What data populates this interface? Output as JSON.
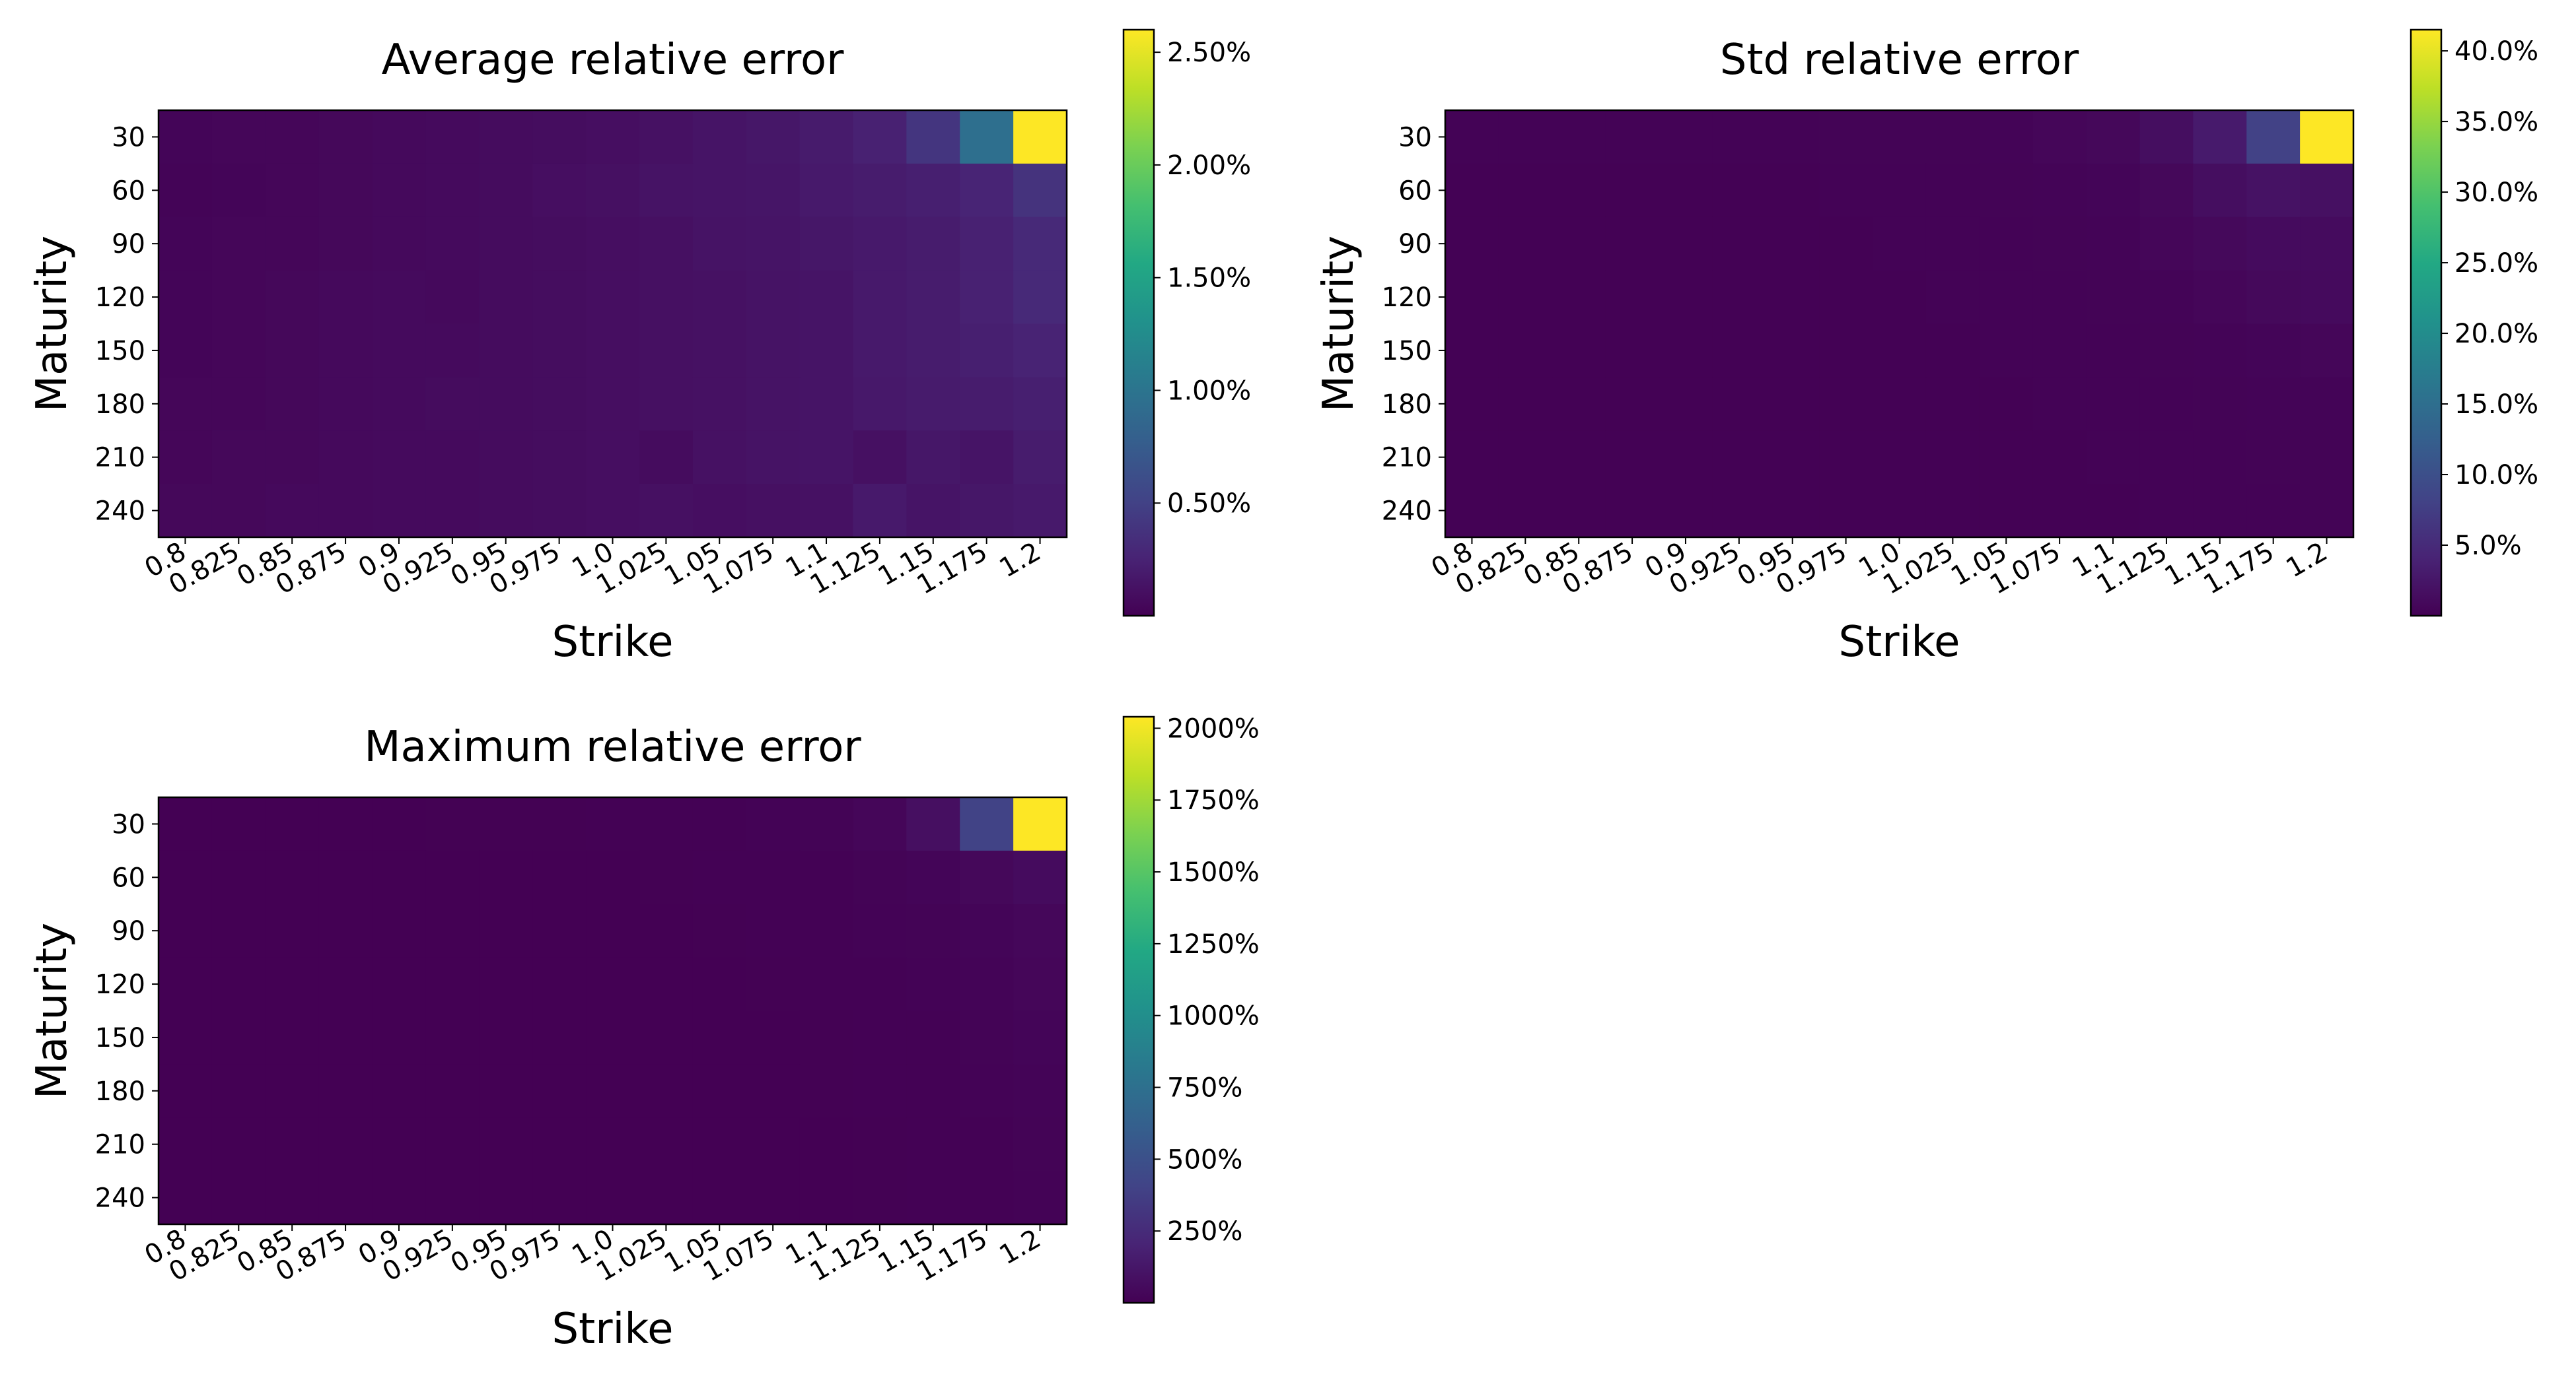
{
  "chart_data": [
    {
      "type": "heatmap",
      "title": "Average relative error",
      "xlabel": "Strike",
      "ylabel": "Maturity",
      "x": [
        "0.8",
        "0.825",
        "0.85",
        "0.875",
        "0.9",
        "0.925",
        "0.95",
        "0.975",
        "1.0",
        "1.025",
        "1.05",
        "1.075",
        "1.1",
        "1.125",
        "1.15",
        "1.175",
        "1.2"
      ],
      "y": [
        "30",
        "60",
        "90",
        "120",
        "150",
        "180",
        "210",
        "240"
      ],
      "colorbar": {
        "min": 0.0,
        "max": 2.6,
        "ticks": [
          "0.50%",
          "1.00%",
          "1.50%",
          "2.00%",
          "2.50%"
        ],
        "tick_values": [
          0.5,
          1.0,
          1.5,
          2.0,
          2.5
        ]
      },
      "values": [
        [
          0.03,
          0.04,
          0.04,
          0.05,
          0.06,
          0.07,
          0.08,
          0.09,
          0.1,
          0.12,
          0.14,
          0.16,
          0.19,
          0.24,
          0.4,
          0.95,
          2.6
        ],
        [
          0.02,
          0.03,
          0.04,
          0.05,
          0.06,
          0.07,
          0.08,
          0.1,
          0.11,
          0.13,
          0.14,
          0.15,
          0.18,
          0.2,
          0.22,
          0.26,
          0.38
        ],
        [
          0.03,
          0.04,
          0.04,
          0.05,
          0.06,
          0.07,
          0.08,
          0.09,
          0.1,
          0.11,
          0.13,
          0.14,
          0.16,
          0.18,
          0.2,
          0.24,
          0.3
        ],
        [
          0.03,
          0.04,
          0.05,
          0.06,
          0.07,
          0.06,
          0.08,
          0.09,
          0.1,
          0.11,
          0.12,
          0.13,
          0.14,
          0.18,
          0.2,
          0.24,
          0.3
        ],
        [
          0.03,
          0.04,
          0.05,
          0.06,
          0.07,
          0.07,
          0.08,
          0.09,
          0.1,
          0.11,
          0.12,
          0.13,
          0.14,
          0.18,
          0.2,
          0.22,
          0.25
        ],
        [
          0.04,
          0.04,
          0.05,
          0.06,
          0.07,
          0.08,
          0.08,
          0.09,
          0.1,
          0.11,
          0.12,
          0.13,
          0.14,
          0.17,
          0.19,
          0.2,
          0.22
        ],
        [
          0.04,
          0.05,
          0.05,
          0.06,
          0.07,
          0.07,
          0.08,
          0.09,
          0.1,
          0.08,
          0.12,
          0.13,
          0.14,
          0.11,
          0.16,
          0.14,
          0.2
        ],
        [
          0.05,
          0.05,
          0.06,
          0.06,
          0.07,
          0.07,
          0.08,
          0.09,
          0.1,
          0.11,
          0.1,
          0.11,
          0.12,
          0.18,
          0.14,
          0.16,
          0.18
        ]
      ]
    },
    {
      "type": "heatmap",
      "title": "Std relative error",
      "xlabel": "Strike",
      "ylabel": "Maturity",
      "x": [
        "0.8",
        "0.825",
        "0.85",
        "0.875",
        "0.9",
        "0.925",
        "0.95",
        "0.975",
        "1.0",
        "1.025",
        "1.05",
        "1.075",
        "1.1",
        "1.125",
        "1.15",
        "1.175",
        "1.2"
      ],
      "y": [
        "30",
        "60",
        "90",
        "120",
        "150",
        "180",
        "210",
        "240"
      ],
      "colorbar": {
        "min": 0.0,
        "max": 41.5,
        "ticks": [
          "5.0%",
          "10.0%",
          "15.0%",
          "20.0%",
          "25.0%",
          "30.0%",
          "35.0%",
          "40.0%"
        ],
        "tick_values": [
          5,
          10,
          15,
          20,
          25,
          30,
          35,
          40
        ]
      },
      "values": [
        [
          0.2,
          0.2,
          0.2,
          0.2,
          0.2,
          0.2,
          0.2,
          0.3,
          0.3,
          0.3,
          0.4,
          0.6,
          0.8,
          1.5,
          3.0,
          8.0,
          41.5
        ],
        [
          0.1,
          0.1,
          0.1,
          0.1,
          0.1,
          0.1,
          0.1,
          0.2,
          0.2,
          0.2,
          0.3,
          0.4,
          0.5,
          0.8,
          1.5,
          2.0,
          1.8
        ],
        [
          0.1,
          0.1,
          0.1,
          0.1,
          0.1,
          0.1,
          0.1,
          0.1,
          0.2,
          0.2,
          0.2,
          0.3,
          0.4,
          0.6,
          0.9,
          1.2,
          1.2
        ],
        [
          0.1,
          0.1,
          0.1,
          0.1,
          0.1,
          0.1,
          0.1,
          0.1,
          0.1,
          0.2,
          0.2,
          0.2,
          0.3,
          0.4,
          0.6,
          0.9,
          1.1
        ],
        [
          0.1,
          0.1,
          0.1,
          0.1,
          0.1,
          0.1,
          0.1,
          0.1,
          0.1,
          0.1,
          0.2,
          0.2,
          0.2,
          0.3,
          0.4,
          0.5,
          0.6
        ],
        [
          0.1,
          0.1,
          0.1,
          0.1,
          0.1,
          0.1,
          0.1,
          0.1,
          0.1,
          0.1,
          0.1,
          0.2,
          0.2,
          0.2,
          0.3,
          0.4,
          0.4
        ],
        [
          0.1,
          0.1,
          0.1,
          0.1,
          0.1,
          0.1,
          0.1,
          0.1,
          0.1,
          0.1,
          0.1,
          0.1,
          0.2,
          0.2,
          0.2,
          0.3,
          0.3
        ],
        [
          0.1,
          0.1,
          0.1,
          0.1,
          0.1,
          0.1,
          0.1,
          0.1,
          0.1,
          0.1,
          0.1,
          0.1,
          0.1,
          0.2,
          0.2,
          0.2,
          0.3
        ]
      ]
    },
    {
      "type": "heatmap",
      "title": "Maximum relative error",
      "xlabel": "Strike",
      "ylabel": "Maturity",
      "x": [
        "0.8",
        "0.825",
        "0.85",
        "0.875",
        "0.9",
        "0.925",
        "0.95",
        "0.975",
        "1.0",
        "1.025",
        "1.05",
        "1.075",
        "1.1",
        "1.125",
        "1.15",
        "1.175",
        "1.2"
      ],
      "y": [
        "30",
        "60",
        "90",
        "120",
        "150",
        "180",
        "210",
        "240"
      ],
      "colorbar": {
        "min": 0.0,
        "max": 2040,
        "ticks": [
          "250%",
          "500%",
          "750%",
          "1000%",
          "1250%",
          "1500%",
          "1750%",
          "2000%"
        ],
        "tick_values": [
          250,
          500,
          750,
          1000,
          1250,
          1500,
          1750,
          2000
        ]
      },
      "values": [
        [
          2,
          2,
          2,
          2,
          2,
          3,
          3,
          3,
          4,
          5,
          7,
          10,
          15,
          30,
          80,
          400,
          2040
        ],
        [
          1,
          1,
          1,
          1,
          1,
          1,
          2,
          2,
          2,
          3,
          4,
          5,
          8,
          15,
          25,
          40,
          60
        ],
        [
          1,
          1,
          1,
          1,
          1,
          1,
          1,
          2,
          2,
          2,
          3,
          4,
          6,
          10,
          15,
          25,
          35
        ],
        [
          1,
          1,
          1,
          1,
          1,
          1,
          1,
          1,
          2,
          2,
          2,
          3,
          4,
          6,
          10,
          20,
          30
        ],
        [
          1,
          1,
          1,
          1,
          1,
          1,
          1,
          1,
          1,
          2,
          2,
          2,
          3,
          5,
          8,
          15,
          25
        ],
        [
          1,
          1,
          1,
          1,
          1,
          1,
          1,
          1,
          1,
          1,
          2,
          2,
          3,
          4,
          6,
          10,
          20
        ],
        [
          1,
          1,
          1,
          1,
          1,
          1,
          1,
          1,
          1,
          1,
          1,
          2,
          2,
          3,
          5,
          8,
          15
        ],
        [
          1,
          1,
          1,
          1,
          1,
          1,
          1,
          1,
          1,
          1,
          1,
          1,
          2,
          3,
          4,
          6,
          10
        ]
      ]
    }
  ]
}
